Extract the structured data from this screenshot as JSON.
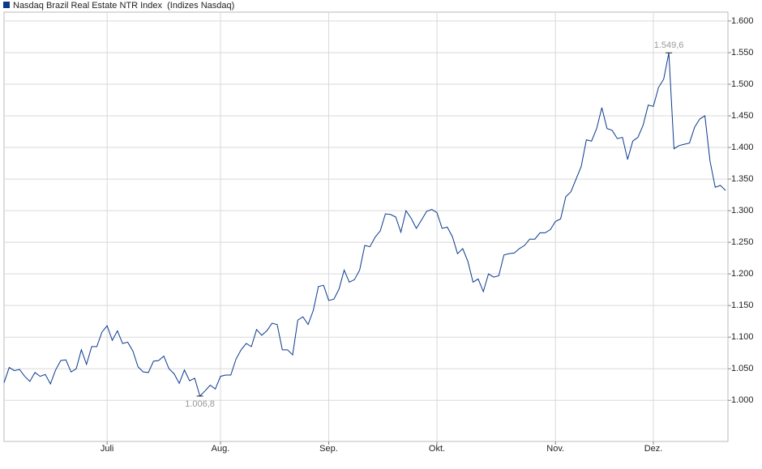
{
  "chart_data": {
    "type": "line",
    "series": [
      {
        "name": "Nasdaq Brazil Real Estate NTR Index  (Indizes Nasdaq)",
        "color": "#0a3a8c",
        "values": [
          1028,
          1052,
          1047,
          1049,
          1038,
          1030,
          1044,
          1038,
          1041,
          1026,
          1048,
          1063,
          1064,
          1045,
          1050,
          1080,
          1057,
          1085,
          1085,
          1108,
          1118,
          1095,
          1110,
          1090,
          1092,
          1078,
          1053,
          1045,
          1044,
          1062,
          1063,
          1070,
          1050,
          1042,
          1027,
          1048,
          1031,
          1035,
          1006.8,
          1015,
          1024,
          1018,
          1038,
          1040,
          1040,
          1065,
          1080,
          1090,
          1085,
          1112,
          1103,
          1110,
          1122,
          1120,
          1080,
          1080,
          1072,
          1127,
          1132,
          1120,
          1142,
          1180,
          1182,
          1158,
          1160,
          1176,
          1206,
          1187,
          1191,
          1206,
          1245,
          1243,
          1258,
          1268,
          1295,
          1294,
          1290,
          1266,
          1300,
          1288,
          1272,
          1285,
          1299,
          1302,
          1297,
          1272,
          1274,
          1259,
          1232,
          1240,
          1220,
          1187,
          1192,
          1172,
          1200,
          1195,
          1197,
          1230,
          1232,
          1233,
          1240,
          1245,
          1255,
          1255,
          1265,
          1265,
          1270,
          1283,
          1287,
          1322,
          1330,
          1350,
          1370,
          1412,
          1410,
          1430,
          1463,
          1430,
          1427,
          1414,
          1416,
          1381,
          1410,
          1416,
          1435,
          1467,
          1465,
          1495,
          1508,
          1549.6,
          1398,
          1403,
          1405,
          1407,
          1432,
          1445,
          1450,
          1378,
          1337,
          1340,
          1332
        ],
        "value_labels": [
          null,
          null,
          null,
          null,
          null,
          null,
          null,
          null,
          null,
          null,
          null,
          null,
          null,
          null,
          null,
          null,
          null,
          null,
          null,
          null,
          null,
          null,
          null,
          null,
          null,
          null,
          null,
          null,
          null,
          null,
          null,
          null,
          null,
          null,
          null,
          null,
          null,
          null,
          "1.006,8",
          null,
          null,
          null,
          null,
          null,
          null,
          null,
          null,
          null,
          null,
          null,
          null,
          null,
          null,
          null,
          null,
          null,
          null,
          null,
          null,
          null,
          null,
          null,
          null,
          null,
          null,
          null,
          null,
          null,
          null,
          null,
          null,
          null,
          null,
          null,
          null,
          null,
          null,
          null,
          null,
          null,
          null,
          null,
          null,
          null,
          null,
          null,
          null,
          null,
          null,
          null,
          null,
          null,
          null,
          null,
          null,
          null,
          null,
          null,
          null,
          null,
          null,
          null,
          null,
          null,
          null,
          null,
          null,
          null,
          null,
          null,
          null,
          null,
          null,
          null,
          null,
          null,
          null,
          null,
          null,
          null,
          null,
          null,
          null,
          null,
          null,
          null,
          null,
          null,
          null,
          "1.549,6",
          null,
          null,
          null,
          null,
          null,
          null,
          null,
          null,
          null,
          null,
          null
        ]
      }
    ],
    "categories": [
      null,
      null,
      null,
      null,
      null,
      null,
      null,
      null,
      null,
      null,
      null,
      null,
      null,
      null,
      null,
      null,
      null,
      null,
      null,
      null,
      "Juli",
      null,
      null,
      null,
      null,
      null,
      null,
      null,
      null,
      null,
      null,
      null,
      null,
      null,
      null,
      null,
      null,
      null,
      null,
      null,
      null,
      null,
      "Aug.",
      null,
      null,
      null,
      null,
      null,
      null,
      null,
      null,
      null,
      null,
      null,
      null,
      null,
      null,
      null,
      null,
      null,
      null,
      null,
      null,
      "Sep.",
      null,
      null,
      null,
      null,
      null,
      null,
      null,
      null,
      null,
      null,
      null,
      null,
      null,
      null,
      null,
      null,
      null,
      null,
      null,
      null,
      "Okt.",
      null,
      null,
      null,
      null,
      null,
      null,
      null,
      null,
      null,
      null,
      null,
      null,
      null,
      null,
      null,
      null,
      null,
      null,
      null,
      null,
      null,
      null,
      "Nov.",
      null,
      null,
      null,
      null,
      null,
      null,
      null,
      null,
      null,
      null,
      null,
      null,
      null,
      null,
      null,
      null,
      null,
      null,
      "Dez.",
      null,
      null,
      null,
      null,
      null,
      null,
      null,
      null,
      null,
      null,
      null,
      null,
      null,
      null
    ],
    "ylim": [
      935,
      1614
    ],
    "yticks": [
      {
        "value": 1000,
        "label": "1.000"
      },
      {
        "value": 1050,
        "label": "1.050"
      },
      {
        "value": 1100,
        "label": "1.100"
      },
      {
        "value": 1150,
        "label": "1.150"
      },
      {
        "value": 1200,
        "label": "1.200"
      },
      {
        "value": 1250,
        "label": "1.250"
      },
      {
        "value": 1300,
        "label": "1.300"
      },
      {
        "value": 1350,
        "label": "1.350"
      },
      {
        "value": 1400,
        "label": "1.400"
      },
      {
        "value": 1450,
        "label": "1.450"
      },
      {
        "value": 1500,
        "label": "1.500"
      },
      {
        "value": 1550,
        "label": "1.550"
      },
      {
        "value": 1600,
        "label": "1.600"
      }
    ],
    "grid": true
  }
}
